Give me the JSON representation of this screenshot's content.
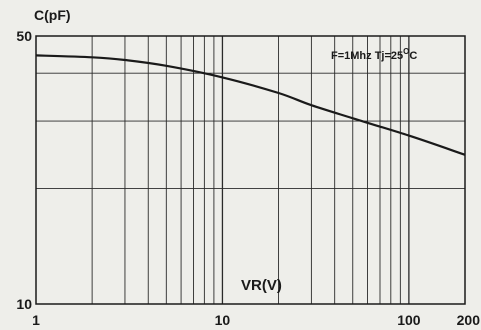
{
  "chart_data": {
    "type": "line",
    "title": "",
    "ylabel": "C(pF)",
    "xlabel": "VR(V)",
    "annotation": "F=1Mhz  Tj=25",
    "annotation_sup": "O",
    "annotation_unit": "C",
    "x_scale": "log",
    "y_scale": "log",
    "xlim": [
      1,
      200
    ],
    "ylim": [
      10,
      50
    ],
    "x_tick_labels": [
      {
        "value": 1,
        "label": "1"
      },
      {
        "value": 10,
        "label": "10"
      },
      {
        "value": 100,
        "label": "100"
      },
      {
        "value": 200,
        "label": "200"
      }
    ],
    "y_tick_labels": [
      {
        "value": 50,
        "label": "50"
      },
      {
        "value": 10,
        "label": "10"
      }
    ],
    "x_gridlines": [
      2,
      3,
      4,
      5,
      6,
      7,
      8,
      9,
      10,
      20,
      30,
      40,
      50,
      60,
      70,
      80,
      90,
      100
    ],
    "y_gridlines": [
      20,
      30,
      40
    ],
    "grid": true,
    "legend": "none",
    "series": [
      {
        "x": [
          1,
          2,
          3,
          5,
          10,
          20,
          30,
          50,
          100,
          200
        ],
        "y": [
          44.5,
          44,
          43.3,
          41.8,
          39,
          35.5,
          33,
          30.5,
          27.5,
          24.5
        ]
      }
    ],
    "colors": {
      "background": "#eeeeea",
      "line": "#1a1a1a"
    }
  }
}
